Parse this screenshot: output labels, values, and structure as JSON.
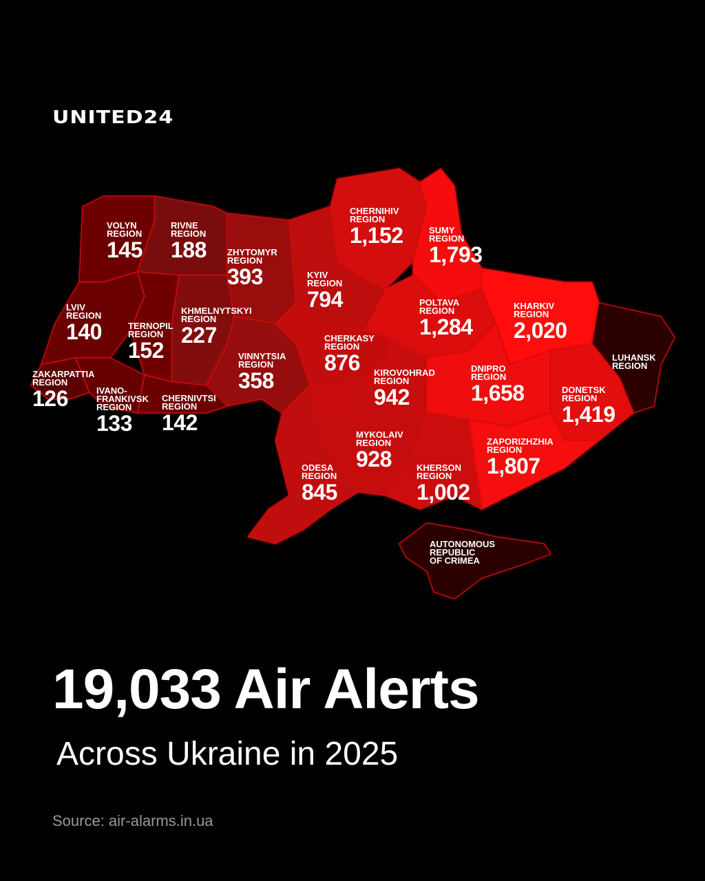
{
  "logo": "UNITED24",
  "title": "19,033 Air Alerts",
  "subtitle": "Across Ukraine in 2025",
  "source": "Source: air-alarms.in.ua",
  "colors": {
    "background": "#000000",
    "low": "#5c0606",
    "high": "#ff0a0a",
    "no_data": "#2b0202",
    "border": "#d01010"
  },
  "map": {
    "type": "choropleth",
    "regions": [
      {
        "id": "volyn",
        "name": "VOLYN\nREGION",
        "value": "145"
      },
      {
        "id": "rivne",
        "name": "RIVNE\nREGION",
        "value": "188"
      },
      {
        "id": "zhytomyr",
        "name": "ZHYTOMYR\nREGION",
        "value": "393"
      },
      {
        "id": "lviv",
        "name": "LVIV\nREGION",
        "value": "140"
      },
      {
        "id": "ternopil",
        "name": "TERNOPIL\nREGION",
        "value": "152"
      },
      {
        "id": "khmelnytskyi",
        "name": "KHMELNYTSKYI\nREGION",
        "value": "227"
      },
      {
        "id": "vinnytsia",
        "name": "VINNYTSIA\nREGION",
        "value": "358"
      },
      {
        "id": "zakarpattia",
        "name": "ZAKARPATTIA\nREGION",
        "value": "126"
      },
      {
        "id": "ivano-frankivsk",
        "name": "IVANO-\nFRANKIVSK\nREGION",
        "value": "133"
      },
      {
        "id": "chernivtsi",
        "name": "CHERNIVTSI\nREGION",
        "value": "142"
      },
      {
        "id": "kyiv",
        "name": "KYIV\nREGION",
        "value": "794"
      },
      {
        "id": "chernihiv",
        "name": "CHERNIHIV\nREGION",
        "value": "1,152"
      },
      {
        "id": "sumy",
        "name": "SUMY\nREGION",
        "value": "1,793"
      },
      {
        "id": "poltava",
        "name": "POLTAVA\nREGION",
        "value": "1,284"
      },
      {
        "id": "kharkiv",
        "name": "KHARKIV\nREGION",
        "value": "2,020"
      },
      {
        "id": "luhansk",
        "name": "LUHANSK\nREGION",
        "value": ""
      },
      {
        "id": "cherkasy",
        "name": "CHERKASY\nREGION",
        "value": "876"
      },
      {
        "id": "kirovohrad",
        "name": "KIROVOHRAD\nREGION",
        "value": "942"
      },
      {
        "id": "dnipro",
        "name": "DNIPRO\nREGION",
        "value": "1,658"
      },
      {
        "id": "donetsk",
        "name": "DONETSK\nREGION",
        "value": "1,419"
      },
      {
        "id": "zaporizhzhia",
        "name": "ZAPORIZHZHIA\nREGION",
        "value": "1,807"
      },
      {
        "id": "mykolaiv",
        "name": "MYKOLAIV\nREGION",
        "value": "928"
      },
      {
        "id": "kherson",
        "name": "KHERSON\nREGION",
        "value": "1,002"
      },
      {
        "id": "odesa",
        "name": "ODESA\nREGION",
        "value": "845"
      },
      {
        "id": "crimea",
        "name": "AUTONOMOUS\nREPUBLIC\nOF CRIMEA",
        "value": ""
      }
    ]
  }
}
